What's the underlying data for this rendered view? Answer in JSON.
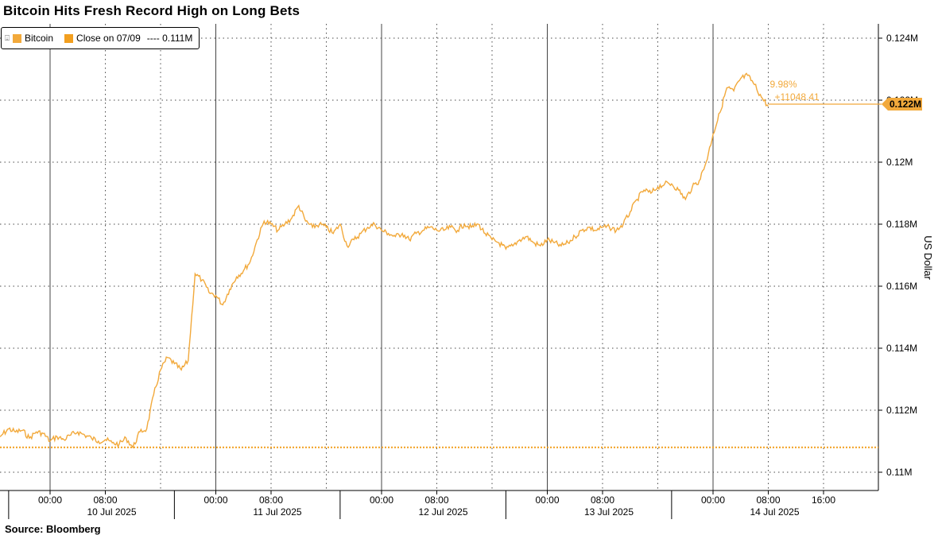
{
  "title": "Bitcoin Hits Fresh Record High on Long Bets",
  "source": "Source: Bloomberg",
  "legend": {
    "series_label": "Bitcoin",
    "close_label": "Close on 07/09",
    "close_value": "---- 0.111M"
  },
  "annotation": {
    "pct": "9.98%",
    "abs": "+11048.41"
  },
  "last_value_label": "0.122M",
  "colors": {
    "line": "#f2a93b",
    "reference": "#f29f1f",
    "grid": "#4a4a4a",
    "label_bg": "#f2a93b"
  },
  "chart_data": {
    "type": "line",
    "title": "Bitcoin Hits Fresh Record High on Long Bets",
    "ylabel": "US Dollar",
    "y_tick_labels": [
      "0.11M",
      "0.112M",
      "0.114M",
      "0.116M",
      "0.118M",
      "0.12M",
      "0.122M",
      "0.124M"
    ],
    "ylim": [
      109500,
      124300
    ],
    "x_time_labels": [
      "00:00",
      "08:00",
      "00:00",
      "08:00",
      "00:00",
      "08:00",
      "00:00",
      "08:00",
      "00:00",
      "08:00",
      "16:00"
    ],
    "x_date_labels": [
      "10 Jul 2025",
      "11 Jul 2025",
      "12 Jul 2025",
      "13 Jul 2025",
      "14 Jul 2025"
    ],
    "reference_line": {
      "label": "Close on 07/09",
      "value": 110800
    },
    "series": [
      {
        "name": "Bitcoin",
        "points": [
          [
            "2025-07-09 16:00",
            110900
          ],
          [
            "2025-07-09 17:00",
            111200
          ],
          [
            "2025-07-09 18:00",
            111400
          ],
          [
            "2025-07-09 19:00",
            111300
          ],
          [
            "2025-07-09 20:00",
            111350
          ],
          [
            "2025-07-09 21:00",
            111100
          ],
          [
            "2025-07-09 22:00",
            111300
          ],
          [
            "2025-07-09 23:00",
            111250
          ],
          [
            "2025-07-10 00:00",
            111000
          ],
          [
            "2025-07-10 01:00",
            111150
          ],
          [
            "2025-07-10 02:00",
            111050
          ],
          [
            "2025-07-10 03:00",
            111200
          ],
          [
            "2025-07-10 04:00",
            111300
          ],
          [
            "2025-07-10 05:00",
            111200
          ],
          [
            "2025-07-10 06:00",
            111100
          ],
          [
            "2025-07-10 07:00",
            111000
          ],
          [
            "2025-07-10 08:00",
            111050
          ],
          [
            "2025-07-10 09:00",
            110950
          ],
          [
            "2025-07-10 10:00",
            110900
          ],
          [
            "2025-07-10 11:00",
            111100
          ],
          [
            "2025-07-10 12:00",
            110800
          ],
          [
            "2025-07-10 13:00",
            111300
          ],
          [
            "2025-07-10 14:00",
            111400
          ],
          [
            "2025-07-10 15:00",
            112500
          ],
          [
            "2025-07-10 16:00",
            113300
          ],
          [
            "2025-07-10 17:00",
            113700
          ],
          [
            "2025-07-10 18:00",
            113500
          ],
          [
            "2025-07-10 19:00",
            113300
          ],
          [
            "2025-07-10 20:00",
            113600
          ],
          [
            "2025-07-10 21:00",
            116400
          ],
          [
            "2025-07-10 22:00",
            116200
          ],
          [
            "2025-07-10 23:00",
            115800
          ],
          [
            "2025-07-11 00:00",
            115700
          ],
          [
            "2025-07-11 01:00",
            115400
          ],
          [
            "2025-07-11 02:00",
            115900
          ],
          [
            "2025-07-11 03:00",
            116300
          ],
          [
            "2025-07-11 04:00",
            116500
          ],
          [
            "2025-07-11 05:00",
            116800
          ],
          [
            "2025-07-11 06:00",
            117500
          ],
          [
            "2025-07-11 07:00",
            118100
          ],
          [
            "2025-07-11 08:00",
            118000
          ],
          [
            "2025-07-11 09:00",
            117800
          ],
          [
            "2025-07-11 10:00",
            118000
          ],
          [
            "2025-07-11 11:00",
            118200
          ],
          [
            "2025-07-11 12:00",
            118600
          ],
          [
            "2025-07-11 13:00",
            118100
          ],
          [
            "2025-07-11 14:00",
            117900
          ],
          [
            "2025-07-11 15:00",
            118000
          ],
          [
            "2025-07-11 16:00",
            117900
          ],
          [
            "2025-07-11 17:00",
            117700
          ],
          [
            "2025-07-11 18:00",
            118000
          ],
          [
            "2025-07-11 19:00",
            117300
          ],
          [
            "2025-07-11 20:00",
            117500
          ],
          [
            "2025-07-11 21:00",
            117700
          ],
          [
            "2025-07-11 22:00",
            117900
          ],
          [
            "2025-07-11 23:00",
            118000
          ],
          [
            "2025-07-12 00:00",
            117800
          ],
          [
            "2025-07-12 01:00",
            117700
          ],
          [
            "2025-07-12 02:00",
            117600
          ],
          [
            "2025-07-12 03:00",
            117700
          ],
          [
            "2025-07-12 04:00",
            117500
          ],
          [
            "2025-07-12 05:00",
            117700
          ],
          [
            "2025-07-12 06:00",
            117800
          ],
          [
            "2025-07-12 07:00",
            117900
          ],
          [
            "2025-07-12 08:00",
            117800
          ],
          [
            "2025-07-12 09:00",
            117800
          ],
          [
            "2025-07-12 10:00",
            117900
          ],
          [
            "2025-07-12 11:00",
            117800
          ],
          [
            "2025-07-12 12:00",
            118000
          ],
          [
            "2025-07-12 13:00",
            117900
          ],
          [
            "2025-07-12 14:00",
            118000
          ],
          [
            "2025-07-12 15:00",
            117700
          ],
          [
            "2025-07-12 16:00",
            117500
          ],
          [
            "2025-07-12 17:00",
            117400
          ],
          [
            "2025-07-12 18:00",
            117200
          ],
          [
            "2025-07-12 19:00",
            117300
          ],
          [
            "2025-07-12 20:00",
            117500
          ],
          [
            "2025-07-12 21:00",
            117600
          ],
          [
            "2025-07-12 22:00",
            117400
          ],
          [
            "2025-07-12 23:00",
            117300
          ],
          [
            "2025-07-13 00:00",
            117500
          ],
          [
            "2025-07-13 01:00",
            117400
          ],
          [
            "2025-07-13 02:00",
            117300
          ],
          [
            "2025-07-13 03:00",
            117400
          ],
          [
            "2025-07-13 04:00",
            117600
          ],
          [
            "2025-07-13 05:00",
            117800
          ],
          [
            "2025-07-13 06:00",
            117900
          ],
          [
            "2025-07-13 07:00",
            117800
          ],
          [
            "2025-07-13 08:00",
            117900
          ],
          [
            "2025-07-13 09:00",
            117900
          ],
          [
            "2025-07-13 10:00",
            117800
          ],
          [
            "2025-07-13 11:00",
            118000
          ],
          [
            "2025-07-13 12:00",
            118400
          ],
          [
            "2025-07-13 13:00",
            118800
          ],
          [
            "2025-07-13 14:00",
            119100
          ],
          [
            "2025-07-13 15:00",
            119000
          ],
          [
            "2025-07-13 16:00",
            119200
          ],
          [
            "2025-07-13 17:00",
            119300
          ],
          [
            "2025-07-13 18:00",
            119300
          ],
          [
            "2025-07-13 19:00",
            119100
          ],
          [
            "2025-07-13 20:00",
            118800
          ],
          [
            "2025-07-13 21:00",
            119200
          ],
          [
            "2025-07-13 22:00",
            119400
          ],
          [
            "2025-07-13 23:00",
            120000
          ],
          [
            "2025-07-14 00:00",
            120900
          ],
          [
            "2025-07-14 01:00",
            121600
          ],
          [
            "2025-07-14 02:00",
            122400
          ],
          [
            "2025-07-14 03:00",
            122300
          ],
          [
            "2025-07-14 04:00",
            122700
          ],
          [
            "2025-07-14 05:00",
            122800
          ],
          [
            "2025-07-14 06:00",
            122500
          ],
          [
            "2025-07-14 07:00",
            122100
          ],
          [
            "2025-07-14 08:00",
            121800
          ]
        ]
      }
    ]
  }
}
